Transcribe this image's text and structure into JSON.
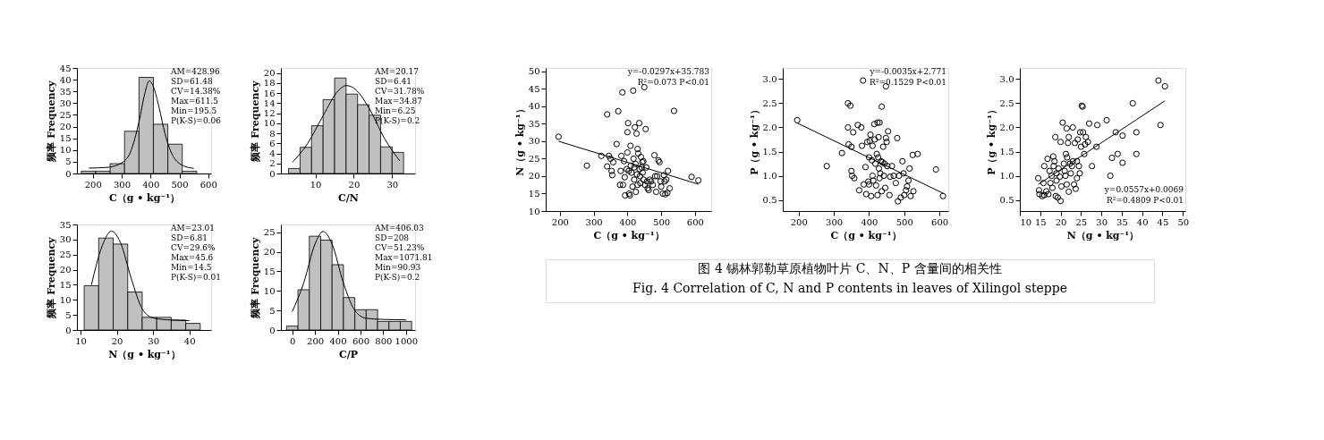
{
  "chart_data": [
    {
      "type": "histogram",
      "xlabel": "C（g • kg⁻¹）",
      "ylabel": "频率 Frequency",
      "color": "#c0c0c0",
      "bins": [
        160,
        210,
        260,
        310,
        360,
        410,
        460,
        510,
        560
      ],
      "values": [
        1,
        1,
        4.2,
        18,
        41,
        21,
        12.5,
        1
      ],
      "series": [
        {
          "type": "line",
          "color": "#000000",
          "x": [
            186,
            250,
            300,
            330,
            360,
            380,
            395,
            410,
            430,
            450,
            480,
            520,
            550
          ],
          "values": [
            2.3,
            2.6,
            4.5,
            9,
            22,
            34,
            39.5,
            37,
            28,
            17,
            7,
            3,
            2.2
          ]
        }
      ],
      "xlim": [
        145,
        610
      ],
      "ylim": [
        0,
        45
      ],
      "xticks": [
        200,
        300,
        400,
        500,
        600
      ],
      "yticks": [
        0,
        5,
        10,
        15,
        20,
        25,
        30,
        35,
        40,
        45
      ],
      "annotations": [
        "AM=428.96",
        "SD=61.48",
        "CV=14.38%",
        "Max=611.5",
        "Min=195.5",
        "P(K-S)=0.06"
      ]
    },
    {
      "type": "histogram",
      "xlabel": "C/N",
      "ylabel": "频率 Frequency",
      "color": "#c0c0c0",
      "bins": [
        3,
        6,
        9,
        12,
        15,
        18,
        21,
        24,
        27,
        30,
        33
      ],
      "values": [
        1,
        5.2,
        9.5,
        14.7,
        19,
        15.8,
        13.7,
        11.6,
        5.3,
        4.2
      ],
      "series": [
        {
          "type": "line",
          "color": "#000000",
          "x": [
            4,
            8,
            12,
            16,
            18,
            20,
            24,
            28,
            32
          ],
          "values": [
            2.2,
            6,
            11.5,
            16.5,
            17.5,
            17,
            13,
            7,
            2.5
          ]
        }
      ],
      "xlim": [
        1,
        36
      ],
      "ylim": [
        0,
        21
      ],
      "xticks": [
        10,
        20,
        30
      ],
      "yticks": [
        0,
        2,
        4,
        6,
        8,
        10,
        12,
        14,
        16,
        18,
        20
      ],
      "annotations": [
        "AM=20.17",
        "SD=6.41",
        "CV=31.78%",
        "Max=34.87",
        "Min=6.25",
        "P(K-S)=0.2"
      ]
    },
    {
      "type": "histogram",
      "xlabel": "N（g • kg⁻¹）",
      "ylabel": "频率 Frequency",
      "color": "#c0c0c0",
      "bins": [
        11,
        15,
        19,
        23,
        27,
        31,
        35,
        39,
        43
      ],
      "values": [
        14.7,
        30.5,
        28.5,
        12.6,
        4.2,
        4.2,
        3.3,
        2.2
      ],
      "series": [
        {
          "type": "line",
          "color": "#000000",
          "x": [
            13,
            16,
            18.5,
            21,
            24,
            27,
            30,
            35,
            40
          ],
          "values": [
            15,
            28,
            32.8,
            29,
            17,
            7,
            4,
            3.3,
            3.1
          ]
        }
      ],
      "xlim": [
        9,
        46
      ],
      "ylim": [
        0,
        35
      ],
      "xticks": [
        10,
        20,
        30,
        40
      ],
      "yticks": [
        0,
        5,
        10,
        15,
        20,
        25,
        30,
        35
      ],
      "annotations": [
        "AM=23.01",
        "SD=6.81",
        "CV=29.6%",
        "Max=45.6",
        "Min=14.5",
        "P(K-S)=0.01"
      ]
    },
    {
      "type": "histogram",
      "xlabel": "C/P",
      "ylabel": "频率 Frequency",
      "color": "#c0c0c0",
      "bins": [
        -50,
        50,
        150,
        250,
        350,
        450,
        550,
        650,
        750,
        850,
        950,
        1050
      ],
      "values": [
        1,
        10.3,
        24,
        23,
        16.7,
        8.3,
        5.2,
        5.2,
        2.2,
        2.2,
        2.2
      ],
      "series": [
        {
          "type": "line",
          "color": "#000000",
          "x": [
            0,
            100,
            200,
            270,
            350,
            450,
            550,
            650,
            800,
            1000
          ],
          "values": [
            4.7,
            12,
            22,
            25.2,
            22,
            12,
            5,
            3,
            2.7,
            2.6
          ]
        }
      ],
      "xlim": [
        -100,
        1080
      ],
      "ylim": [
        0,
        27
      ],
      "xticks": [
        0,
        200,
        400,
        600,
        800,
        1000
      ],
      "yticks": [
        0,
        5,
        10,
        15,
        20,
        25
      ],
      "annotations": [
        "AM=406.03",
        "SD=208",
        "CV=51.23%",
        "Max=1071.81",
        "Min=90.93",
        "P(K-S)=0.2"
      ]
    },
    {
      "type": "scatter",
      "xlabel": "C（g • kg⁻¹）",
      "ylabel": "N（g • kg⁻¹）",
      "xlim": [
        158,
        648
      ],
      "ylim": [
        10,
        51
      ],
      "xticks": [
        200,
        300,
        400,
        500,
        600
      ],
      "yticks": [
        10,
        15,
        20,
        25,
        30,
        35,
        40,
        45,
        50
      ],
      "series": [
        {
          "type": "scatter",
          "marker": "circle",
          "color": "#000000",
          "x": [
            196,
            280,
            323,
            340,
            340,
            345,
            350,
            353,
            355,
            358,
            368,
            373,
            378,
            380,
            382,
            385,
            387,
            390,
            392,
            393,
            398,
            400,
            400,
            402,
            404,
            405,
            407,
            409,
            410,
            412,
            415,
            417,
            418,
            420,
            420,
            422,
            424,
            425,
            427,
            428,
            430,
            430,
            432,
            435,
            436,
            437,
            438,
            440,
            442,
            444,
            445,
            447,
            448,
            450,
            452,
            454,
            456,
            458,
            460,
            463,
            466,
            470,
            475,
            480,
            482,
            485,
            488,
            492,
            495,
            498,
            500,
            505,
            508,
            510,
            512,
            515,
            518,
            520,
            525,
            538,
            590,
            610
          ],
          "values": [
            31.3,
            23,
            25.8,
            37.7,
            22.8,
            25.8,
            25,
            21.5,
            20.3,
            24,
            29.2,
            38.6,
            17.5,
            21.5,
            25.8,
            44,
            17.5,
            24.3,
            19.7,
            14.5,
            22,
            26.8,
            32.6,
            35.2,
            21.5,
            15,
            14.5,
            28.7,
            23,
            21,
            17,
            44.5,
            25,
            22.5,
            19,
            34,
            23.5,
            15.5,
            32.2,
            20.5,
            27.8,
            17.5,
            26.5,
            35.2,
            22,
            20,
            18,
            25.5,
            22.5,
            24,
            21,
            24.3,
            19,
            45.5,
            17.5,
            33.5,
            22.5,
            18.5,
            16.5,
            16,
            19,
            18.5,
            17.5,
            26,
            20,
            15.5,
            20,
            24.5,
            24,
            18.5,
            17,
            15,
            20.3,
            18.5,
            14.8,
            19,
            15.2,
            21.5,
            16.5,
            38.7,
            19.8,
            18.8
          ]
        },
        {
          "type": "line",
          "color": "#000000",
          "x": [
            196,
            610
          ],
          "values": [
            30.0,
            17.7
          ]
        }
      ],
      "annotations": [
        "y=-0.0297x+35.783",
        "R²=0.073    P<0.01"
      ]
    },
    {
      "type": "scatter",
      "xlabel": "C（g • kg⁻¹）",
      "ylabel": "P（g • kg⁻¹）",
      "xlim": [
        155,
        625
      ],
      "ylim": [
        0.27,
        3.23
      ],
      "xticks": [
        200,
        300,
        400,
        500,
        600
      ],
      "yticks": [
        {
          "value": 0.5,
          "label": "0.5"
        },
        {
          "value": 1,
          "label": "1.0"
        },
        {
          "value": 1.5,
          "label": "1.5"
        },
        {
          "value": 2,
          "label": "2.0"
        },
        {
          "value": 2.5,
          "label": "2.5"
        },
        {
          "value": 3,
          "label": "3.0"
        }
      ],
      "series": [
        {
          "type": "scatter",
          "marker": "circle",
          "color": "#000000",
          "x": [
            196,
            280,
            323,
            340,
            340,
            342,
            347,
            350,
            350,
            352,
            355,
            358,
            368,
            372,
            378,
            380,
            383,
            385,
            390,
            392,
            395,
            398,
            400,
            400,
            402,
            404,
            406,
            408,
            410,
            410,
            412,
            415,
            416,
            418,
            420,
            422,
            424,
            424,
            426,
            427,
            428,
            430,
            430,
            432,
            434,
            436,
            436,
            438,
            440,
            442,
            444,
            446,
            448,
            448,
            450,
            452,
            454,
            458,
            460,
            465,
            470,
            476,
            480,
            482,
            485,
            490,
            495,
            498,
            500,
            505,
            508,
            512,
            515,
            518,
            524,
            526,
            538,
            590,
            610
          ],
          "values": [
            2.15,
            1.2,
            1.47,
            2.5,
            2.0,
            1.65,
            2.45,
            1.6,
            1.1,
            1.0,
            1.9,
            0.95,
            2.05,
            0.7,
            2.0,
            1.62,
            2.97,
            0.82,
            1.18,
            0.62,
            1.7,
            0.88,
            1.38,
            0.82,
            1.72,
            1.85,
            0.58,
            1.32,
            1.62,
            1.0,
            0.9,
            2.07,
            1.75,
            1.25,
            0.8,
            1.45,
            2.1,
            0.6,
            1.38,
            1.8,
            1.15,
            2.1,
            0.95,
            1.05,
            1.3,
            2.43,
            0.68,
            1.28,
            1.6,
            1.0,
            1.25,
            0.75,
            1.78,
            2.85,
            1.7,
            1.2,
            1.92,
            0.6,
            0.98,
            1.2,
            1.0,
            0.85,
            1.78,
            0.47,
            1.0,
            0.55,
            1.3,
            1.05,
            0.6,
            0.7,
            0.78,
            0.9,
            1.15,
            0.58,
            1.43,
            0.68,
            1.45,
            1.13,
            0.58
          ]
        },
        {
          "type": "line",
          "color": "#000000",
          "x": [
            196,
            610
          ],
          "values": [
            2.09,
            0.64
          ]
        }
      ],
      "annotations": [
        "y=-0.0035x+2.771",
        "R²=0.1529    P<0.01"
      ]
    },
    {
      "type": "scatter",
      "xlabel": "N（g • kg⁻¹）",
      "ylabel": "P（g • kg⁻¹）",
      "xlim": [
        10,
        50.6
      ],
      "ylim": [
        0.27,
        3.23
      ],
      "xticks": [
        10,
        15,
        20,
        25,
        30,
        35,
        40,
        45,
        50
      ],
      "yticks": [
        {
          "value": 0.5,
          "label": "0.5"
        },
        {
          "value": 1,
          "label": "1.0"
        },
        {
          "value": 1.5,
          "label": "1.5"
        },
        {
          "value": 2,
          "label": "2.0"
        },
        {
          "value": 2.5,
          "label": "2.5"
        },
        {
          "value": 3,
          "label": "3.0"
        }
      ],
      "series": [
        {
          "type": "scatter",
          "marker": "circle",
          "color": "#000000",
          "x": [
            14.5,
            14.7,
            14.8,
            15.5,
            15.8,
            16,
            16,
            16.5,
            16.8,
            17,
            17.3,
            17.5,
            17.8,
            18,
            18.2,
            18.3,
            18.5,
            18.7,
            18.8,
            19,
            19,
            19.3,
            19.5,
            19.8,
            20,
            20,
            20.2,
            20.5,
            20.8,
            21,
            21.2,
            21.3,
            21.5,
            21.5,
            21.6,
            21.8,
            22,
            22,
            22.3,
            22.5,
            22.8,
            23,
            23,
            23.3,
            23.5,
            23.7,
            24,
            24,
            24.2,
            24.5,
            24.7,
            24.8,
            25,
            25.2,
            25.4,
            25.5,
            25.8,
            26,
            26.2,
            26.7,
            27,
            27.7,
            28.8,
            29,
            31.3,
            32.2,
            32.6,
            33.5,
            34,
            35.2,
            35.2,
            37.7,
            38.6,
            38.6,
            44,
            44.5,
            45.6
          ],
          "values": [
            0.95,
            0.7,
            0.62,
            0.58,
            0.85,
            1.2,
            0.6,
            0.68,
            1.35,
            0.62,
            1.1,
            0.85,
            1.0,
            0.75,
            1.4,
            1.2,
            1.3,
            1.8,
            0.58,
            1.05,
            0.9,
            0.55,
            1.15,
            0.98,
            1.7,
            0.48,
            0.78,
            2.1,
            1.25,
            1.1,
            1.0,
            1.45,
            1.98,
            0.82,
            1.38,
            1.68,
            1.8,
            0.67,
            1.25,
            1.05,
            1.2,
            2.0,
            1.3,
            0.82,
            1.68,
            0.73,
            1.3,
            0.95,
            1.75,
            1.2,
            1.05,
            1.9,
            1.6,
            2.45,
            2.43,
            1.9,
            1.45,
            1.65,
            1.8,
            1.7,
            2.08,
            1.2,
            1.6,
            2.05,
            2.15,
            1.0,
            1.37,
            1.9,
            1.45,
            1.83,
            1.27,
            2.5,
            1.9,
            1.45,
            2.97,
            2.05,
            2.85
          ]
        },
        {
          "type": "line",
          "color": "#000000",
          "x": [
            14.5,
            45.6
          ],
          "values": [
            0.82,
            2.55
          ]
        }
      ],
      "annotations": [
        "y=0.0557x+0.0069",
        "R²=0.4809    P<0.01"
      ]
    },
    {
      "type": "other",
      "annotations": [
        "图 4  锡林郭勒草原植物叶片 C、N、P 含量间的相关性",
        "Fig. 4 Correlation of C, N and P contents in leaves of Xilingol steppe"
      ]
    }
  ]
}
